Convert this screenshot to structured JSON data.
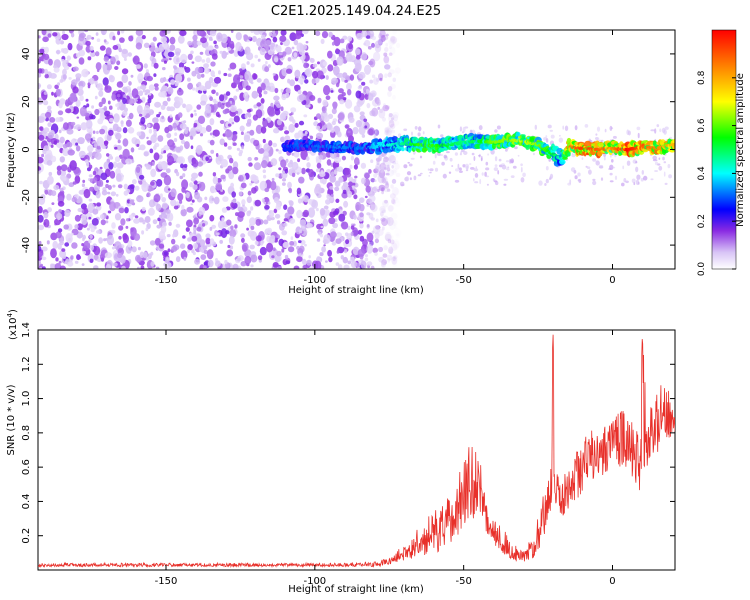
{
  "figure": {
    "title": "C2E1.2025.149.04.24.E25"
  },
  "chart_data": [
    {
      "type": "heatmap",
      "xlabel": "Height of straight line (km)",
      "ylabel": "Frequency (Hz)",
      "xlim": [
        -193,
        21
      ],
      "ylim": [
        -50,
        50
      ],
      "xticks": [
        -150,
        -100,
        -50,
        0
      ],
      "xtick_labels": [
        "-150",
        "-100",
        "-50",
        "0"
      ],
      "yticks": [
        -40,
        -20,
        0,
        20,
        40
      ],
      "ytick_labels": [
        "-40",
        "-20",
        "0",
        "20",
        "40"
      ],
      "colorbar": {
        "label": "Normalized spectral amplitude",
        "range": [
          0,
          1
        ],
        "ticks": [
          0.0,
          0.2,
          0.4,
          0.6,
          0.8
        ],
        "tick_labels": [
          "0.0",
          "0.2",
          "0.4",
          "0.6",
          "0.8"
        ],
        "colormap": "rainbow"
      },
      "features": {
        "noise_region_x": [
          -193,
          -78
        ],
        "signal_band": [
          [
            -108,
            1.5,
            0.28
          ],
          [
            -100,
            1.5,
            0.3
          ],
          [
            -92,
            1.0,
            0.32
          ],
          [
            -85,
            0.5,
            0.3
          ],
          [
            -80,
            1.0,
            0.35
          ],
          [
            -75,
            2.0,
            0.4
          ],
          [
            -70,
            2.5,
            0.45
          ],
          [
            -65,
            2.0,
            0.55
          ],
          [
            -60,
            1.5,
            0.55
          ],
          [
            -55,
            2.0,
            0.5
          ],
          [
            -50,
            3.0,
            0.45
          ],
          [
            -45,
            3.5,
            0.5
          ],
          [
            -40,
            3.0,
            0.6
          ],
          [
            -35,
            4.0,
            0.6
          ],
          [
            -30,
            3.5,
            0.65
          ],
          [
            -25,
            2.0,
            0.6
          ],
          [
            -20,
            -2.0,
            0.5
          ],
          [
            -17,
            -4.0,
            0.4
          ],
          [
            -15,
            1.0,
            0.8
          ],
          [
            -10,
            0.5,
            0.9
          ],
          [
            -5,
            0.0,
            0.85
          ],
          [
            0,
            0.5,
            0.8
          ],
          [
            5,
            0.0,
            0.95
          ],
          [
            10,
            1.0,
            0.85
          ],
          [
            15,
            0.5,
            0.8
          ],
          [
            20,
            2.0,
            0.75
          ]
        ]
      }
    },
    {
      "type": "line",
      "xlabel": "Height of straight line (km)",
      "ylabel": "SNR (10 * v/v)",
      "y_multiplier": "(x10",
      "y_multiplier_exp": "4",
      "y_multiplier_close": ")",
      "xlim": [
        -193,
        21
      ],
      "ylim": [
        0,
        1.4
      ],
      "xticks": [
        -150,
        -100,
        -50,
        0
      ],
      "xtick_labels": [
        "-150",
        "-100",
        "-50",
        "0"
      ],
      "yticks": [
        0.2,
        0.4,
        0.6,
        0.8,
        1.0,
        1.2,
        1.4
      ],
      "ytick_labels": [
        "0.2",
        "0.4",
        "0.6",
        "0.8",
        "1.0",
        "1.2",
        "1.4"
      ],
      "series": [
        {
          "color": "#e8302a",
          "envelope": [
            [
              -193,
              0.02,
              0.04
            ],
            [
              -110,
              0.02,
              0.04
            ],
            [
              -90,
              0.02,
              0.04
            ],
            [
              -80,
              0.02,
              0.05
            ],
            [
              -75,
              0.03,
              0.07
            ],
            [
              -70,
              0.05,
              0.15
            ],
            [
              -65,
              0.08,
              0.25
            ],
            [
              -60,
              0.1,
              0.35
            ],
            [
              -58,
              0.1,
              0.4
            ],
            [
              -55,
              0.15,
              0.45
            ],
            [
              -52,
              0.2,
              0.55
            ],
            [
              -50,
              0.25,
              0.65
            ],
            [
              -48,
              0.3,
              0.75
            ],
            [
              -46,
              0.28,
              0.7
            ],
            [
              -44,
              0.25,
              0.6
            ],
            [
              -42,
              0.2,
              0.4
            ],
            [
              -40,
              0.15,
              0.3
            ],
            [
              -37,
              0.1,
              0.25
            ],
            [
              -35,
              0.07,
              0.2
            ],
            [
              -33,
              0.05,
              0.15
            ],
            [
              -31,
              0.04,
              0.12
            ],
            [
              -29,
              0.05,
              0.15
            ],
            [
              -27,
              0.06,
              0.2
            ],
            [
              -25,
              0.1,
              0.35
            ],
            [
              -23,
              0.2,
              0.45
            ],
            [
              -21,
              0.3,
              0.55
            ],
            [
              -20,
              0.35,
              1.4
            ],
            [
              -19,
              0.35,
              0.6
            ],
            [
              -17,
              0.3,
              0.55
            ],
            [
              -15,
              0.35,
              0.6
            ],
            [
              -12,
              0.4,
              0.7
            ],
            [
              -10,
              0.45,
              0.8
            ],
            [
              -8,
              0.5,
              0.85
            ],
            [
              -5,
              0.55,
              0.8
            ],
            [
              -3,
              0.55,
              0.85
            ],
            [
              0,
              0.6,
              0.9
            ],
            [
              3,
              0.6,
              0.95
            ],
            [
              5,
              0.6,
              0.9
            ],
            [
              7,
              0.5,
              0.85
            ],
            [
              9,
              0.45,
              0.8
            ],
            [
              10,
              0.55,
              1.35
            ],
            [
              12,
              0.6,
              0.95
            ],
            [
              14,
              0.65,
              1.0
            ],
            [
              16,
              0.7,
              1.1
            ],
            [
              18,
              0.75,
              1.05
            ],
            [
              21,
              0.8,
              1.05
            ]
          ]
        }
      ]
    }
  ]
}
